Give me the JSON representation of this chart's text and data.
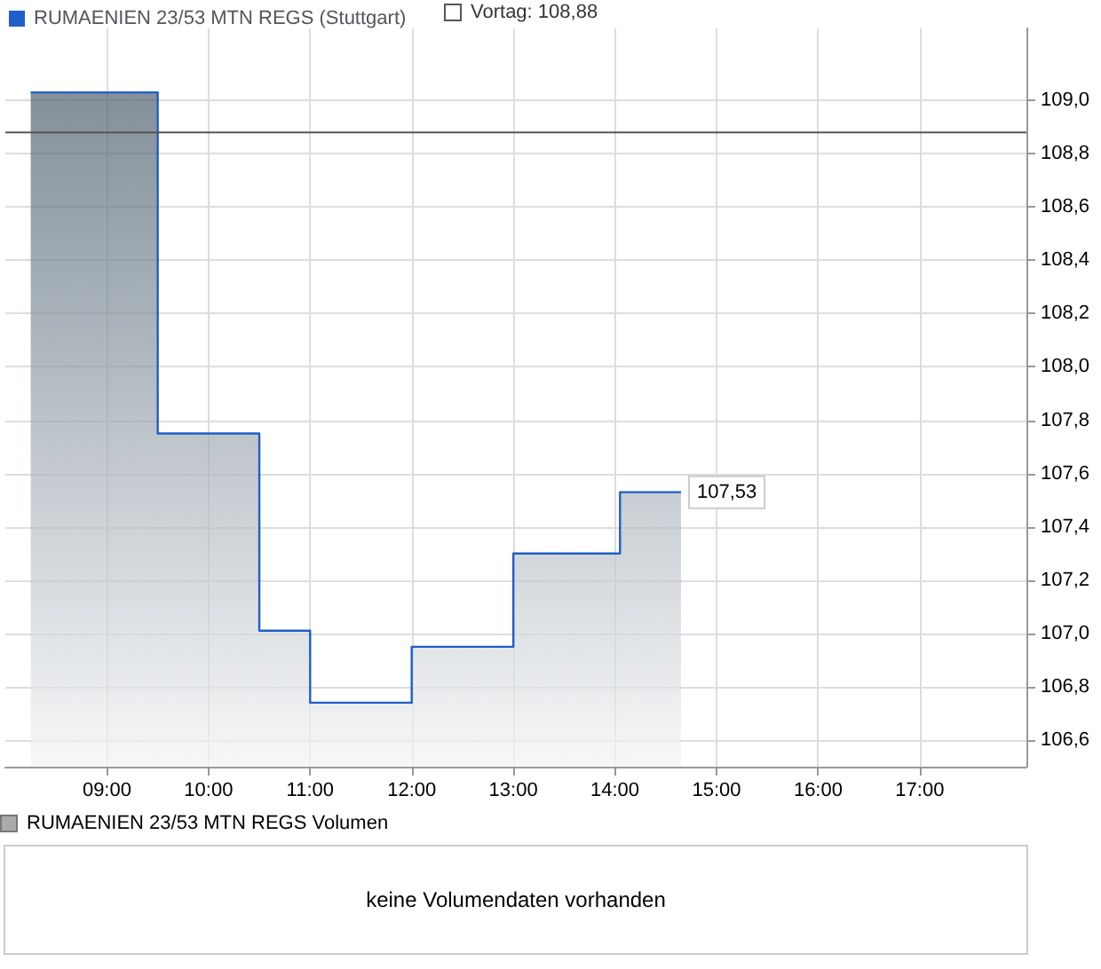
{
  "chart_data": [
    {
      "type": "area",
      "x": [
        8.25,
        9.5,
        9.5,
        10.5,
        10.5,
        11,
        11,
        12,
        12,
        13,
        13,
        14.05,
        14.05,
        14.65
      ],
      "series": [
        {
          "name": "RUMAENIEN 23/53 MTN REGS (Stuttgart)",
          "color": "#1f5fc8",
          "values": [
            109.03,
            109.03,
            107.75,
            107.75,
            107.01,
            107.01,
            106.74,
            106.74,
            106.95,
            106.95,
            107.3,
            107.3,
            107.53,
            107.53
          ],
          "value_labels": [
            null,
            null,
            null,
            null,
            null,
            null,
            null,
            null,
            null,
            null,
            null,
            null,
            null,
            "107,53"
          ]
        }
      ],
      "xlim": [
        8,
        18.05
      ],
      "xticks": [
        {
          "value": 9,
          "label": "09:00"
        },
        {
          "value": 10,
          "label": "10:00"
        },
        {
          "value": 11,
          "label": "11:00"
        },
        {
          "value": 12,
          "label": "12:00"
        },
        {
          "value": 13,
          "label": "13:00"
        },
        {
          "value": 14,
          "label": "14:00"
        },
        {
          "value": 15,
          "label": "15:00"
        },
        {
          "value": 16,
          "label": "16:00"
        },
        {
          "value": 17,
          "label": "17:00"
        }
      ],
      "ylim": [
        106.5,
        109.27
      ],
      "yticks": [
        {
          "value": 106.6,
          "label": "106,6"
        },
        {
          "value": 106.8,
          "label": "106,8"
        },
        {
          "value": 107,
          "label": "107,0"
        },
        {
          "value": 107.2,
          "label": "107,2"
        },
        {
          "value": 107.4,
          "label": "107,4"
        },
        {
          "value": 107.6,
          "label": "107,6"
        },
        {
          "value": 107.8,
          "label": "107,8"
        },
        {
          "value": 108,
          "label": "108,0"
        },
        {
          "value": 108.2,
          "label": "108,2"
        },
        {
          "value": 108.4,
          "label": "108,4"
        },
        {
          "value": 108.6,
          "label": "108,6"
        },
        {
          "value": 108.8,
          "label": "108,8"
        },
        {
          "value": 109,
          "label": "109,0"
        }
      ],
      "ref_lines": [
        {
          "axis": "y",
          "value": 108.88,
          "label": "Vortag: 108,88",
          "color": "#555555"
        }
      ],
      "grid": true,
      "legend": "top left"
    },
    {
      "type": "other",
      "title": "RUMAENIEN 23/53 MTN REGS Volumen",
      "annotations": [
        "keine Volumendaten vorhanden"
      ]
    }
  ]
}
